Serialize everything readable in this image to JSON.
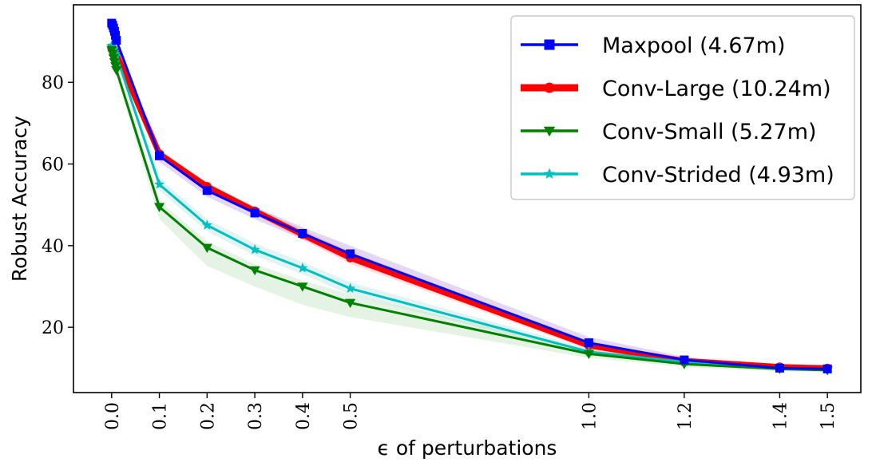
{
  "chart_data": {
    "type": "line",
    "title": "",
    "xlabel": "ϵ of perturbations",
    "ylabel": "Robust Accuracy",
    "xlim": [
      -0.08,
      1.57
    ],
    "ylim": [
      4,
      99
    ],
    "x_ticks": [
      0.0,
      0.1,
      0.2,
      0.3,
      0.4,
      0.5,
      1.0,
      1.2,
      1.4,
      1.5
    ],
    "x_tick_labels": [
      "0.0",
      "0.1",
      "0.2",
      "0.3",
      "0.4",
      "0.5",
      "1.0",
      "1.2",
      "1.4",
      "1.5"
    ],
    "y_ticks": [
      20,
      40,
      60,
      80
    ],
    "y_tick_labels": [
      "20",
      "40",
      "60",
      "80"
    ],
    "grid": false,
    "legend_position": "top-right",
    "series": [
      {
        "name": "Maxpool (4.67m)",
        "color": "#0000ff",
        "marker": "square",
        "band_color": "#b48cdc",
        "x": [
          0.0,
          0.002,
          0.004,
          0.006,
          0.008,
          0.01,
          0.1,
          0.2,
          0.3,
          0.4,
          0.5,
          1.0,
          1.2,
          1.4,
          1.5
        ],
        "y": [
          94.5,
          94.0,
          93.3,
          92.5,
          91.5,
          90.3,
          62.0,
          53.5,
          48.0,
          43.0,
          38.0,
          16.2,
          12.0,
          10.0,
          9.8
        ],
        "band_low": [
          93.5,
          93.0,
          92.3,
          91.5,
          90.5,
          89.3,
          60.5,
          52.0,
          46.5,
          41.5,
          36.0,
          15.0,
          11.3,
          9.4,
          9.3
        ],
        "band_high": [
          95.0,
          94.6,
          94.0,
          93.3,
          92.3,
          91.2,
          63.5,
          55.0,
          49.5,
          44.5,
          40.0,
          17.6,
          12.8,
          10.6,
          10.3
        ]
      },
      {
        "name": "Conv-Large (10.24m)",
        "color": "#ff0000",
        "marker": "circle",
        "band_color": "#ffaaaa",
        "x": [
          0.0,
          0.002,
          0.004,
          0.006,
          0.008,
          0.01,
          0.1,
          0.2,
          0.3,
          0.4,
          0.5,
          1.0,
          1.2,
          1.4,
          1.5
        ],
        "y": [
          88.5,
          88.2,
          87.9,
          87.6,
          87.3,
          87.0,
          62.5,
          54.5,
          48.5,
          42.7,
          37.0,
          15.5,
          11.8,
          10.3,
          10.0
        ],
        "band_low": [
          87.5,
          87.2,
          86.9,
          86.6,
          86.3,
          86.0,
          61.5,
          53.5,
          47.5,
          41.5,
          35.5,
          14.5,
          11.2,
          9.8,
          9.5
        ],
        "band_high": [
          89.5,
          89.2,
          88.9,
          88.6,
          88.3,
          88.0,
          63.5,
          55.5,
          49.5,
          44.0,
          38.5,
          16.5,
          12.4,
          10.8,
          10.5
        ]
      },
      {
        "name": "Conv-Small (5.27m)",
        "color": "#008000",
        "marker": "triangle-down",
        "band_color": "#b3dcb3",
        "x": [
          0.0,
          0.002,
          0.004,
          0.006,
          0.008,
          0.01,
          0.1,
          0.2,
          0.3,
          0.4,
          0.5,
          1.0,
          1.2,
          1.4,
          1.5
        ],
        "y": [
          88.0,
          87.0,
          86.0,
          85.0,
          84.0,
          83.0,
          49.5,
          39.5,
          34.0,
          30.0,
          26.0,
          13.5,
          11.0,
          9.8,
          9.5
        ],
        "band_low": [
          86.5,
          85.5,
          84.5,
          83.5,
          82.5,
          81.5,
          46.5,
          35.0,
          30.0,
          25.5,
          22.5,
          12.5,
          10.3,
          9.2,
          9.0
        ],
        "band_high": [
          89.0,
          88.0,
          87.0,
          86.0,
          85.0,
          84.0,
          51.0,
          41.0,
          35.5,
          31.5,
          28.0,
          14.5,
          11.7,
          10.4,
          10.0
        ]
      },
      {
        "name": "Conv-Strided (4.93m)",
        "color": "#00bfbf",
        "marker": "star",
        "band_color": "#aadcdc",
        "x": [
          0.0,
          0.002,
          0.004,
          0.006,
          0.008,
          0.01,
          0.1,
          0.2,
          0.3,
          0.4,
          0.5,
          1.0,
          1.2,
          1.4,
          1.5
        ],
        "y": [
          89.0,
          88.5,
          88.0,
          87.5,
          87.0,
          86.5,
          55.0,
          45.0,
          39.0,
          34.5,
          29.5,
          14.0,
          11.5,
          10.0,
          9.7
        ],
        "band_low": [
          88.0,
          87.5,
          87.0,
          86.5,
          86.0,
          85.5,
          53.5,
          43.5,
          37.5,
          33.0,
          28.0,
          13.2,
          10.9,
          9.5,
          9.2
        ],
        "band_high": [
          90.0,
          89.5,
          89.0,
          88.5,
          88.0,
          87.5,
          56.5,
          46.5,
          40.5,
          36.0,
          31.0,
          14.8,
          12.1,
          10.5,
          10.2
        ]
      }
    ]
  }
}
